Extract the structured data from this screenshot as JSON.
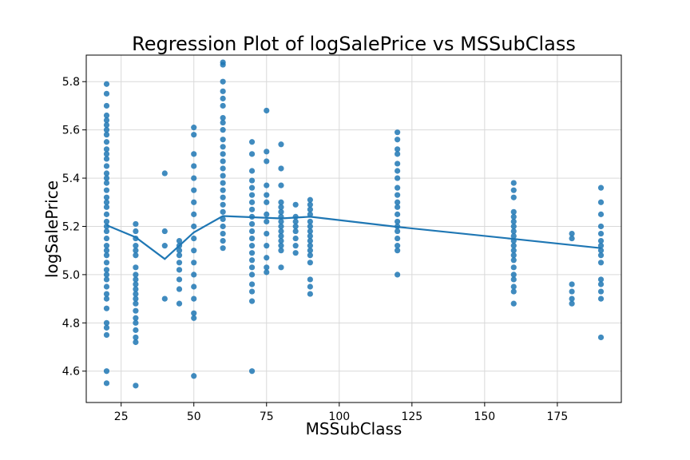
{
  "chart_data": {
    "type": "scatter",
    "title": "Regression Plot of logSalePrice vs MSSubClass",
    "xlabel": "MSSubClass",
    "ylabel": "logSalePrice",
    "xlim": [
      13,
      197
    ],
    "ylim": [
      4.47,
      5.91
    ],
    "xticks": [
      25,
      50,
      75,
      100,
      125,
      150,
      175
    ],
    "yticks": [
      4.6,
      4.8,
      5.0,
      5.2,
      5.4,
      5.6,
      5.8
    ],
    "grid": true,
    "point_color": "#1f77b4",
    "line_color": "#1f77b4",
    "groups": [
      {
        "x": 20,
        "values": [
          4.55,
          4.6,
          4.75,
          4.78,
          4.8,
          4.86,
          4.9,
          4.92,
          4.95,
          4.98,
          5.0,
          5.02,
          5.05,
          5.08,
          5.1,
          5.12,
          5.15,
          5.18,
          5.2,
          5.22,
          5.25,
          5.28,
          5.3,
          5.32,
          5.35,
          5.38,
          5.4,
          5.42,
          5.45,
          5.48,
          5.5,
          5.52,
          5.55,
          5.58,
          5.6,
          5.62,
          5.64,
          5.66,
          5.7,
          5.75,
          5.79
        ]
      },
      {
        "x": 30,
        "values": [
          4.54,
          4.72,
          4.74,
          4.77,
          4.8,
          4.82,
          4.85,
          4.88,
          4.9,
          4.92,
          4.94,
          4.96,
          4.98,
          5.0,
          5.03,
          5.08,
          5.1,
          5.12,
          5.15,
          5.18,
          5.21
        ]
      },
      {
        "x": 40,
        "values": [
          4.9,
          5.12,
          5.18,
          5.42
        ]
      },
      {
        "x": 45,
        "values": [
          4.88,
          4.94,
          4.98,
          5.02,
          5.05,
          5.08,
          5.1,
          5.12,
          5.14
        ]
      },
      {
        "x": 50,
        "values": [
          4.58,
          4.82,
          4.84,
          4.9,
          4.95,
          5.0,
          5.05,
          5.1,
          5.15,
          5.2,
          5.25,
          5.3,
          5.35,
          5.4,
          5.45,
          5.5,
          5.58,
          5.61
        ]
      },
      {
        "x": 60,
        "values": [
          5.11,
          5.14,
          5.17,
          5.2,
          5.23,
          5.26,
          5.29,
          5.32,
          5.35,
          5.38,
          5.41,
          5.44,
          5.47,
          5.5,
          5.53,
          5.56,
          5.6,
          5.63,
          5.65,
          5.7,
          5.73,
          5.76,
          5.8,
          5.87,
          5.88
        ]
      },
      {
        "x": 70,
        "values": [
          4.6,
          4.89,
          4.93,
          4.96,
          5.0,
          5.03,
          5.06,
          5.09,
          5.12,
          5.15,
          5.18,
          5.21,
          5.24,
          5.27,
          5.3,
          5.33,
          5.36,
          5.39,
          5.43,
          5.5,
          5.55
        ]
      },
      {
        "x": 75,
        "values": [
          5.01,
          5.03,
          5.07,
          5.12,
          5.17,
          5.22,
          5.25,
          5.3,
          5.33,
          5.37,
          5.47,
          5.51,
          5.68
        ]
      },
      {
        "x": 80,
        "values": [
          5.03,
          5.1,
          5.12,
          5.14,
          5.16,
          5.18,
          5.2,
          5.22,
          5.24,
          5.26,
          5.28,
          5.3,
          5.37,
          5.44,
          5.54
        ]
      },
      {
        "x": 85,
        "values": [
          5.09,
          5.12,
          5.15,
          5.18,
          5.2,
          5.22,
          5.24,
          5.29
        ]
      },
      {
        "x": 90,
        "values": [
          4.92,
          4.95,
          4.98,
          5.05,
          5.08,
          5.1,
          5.12,
          5.14,
          5.16,
          5.18,
          5.2,
          5.22,
          5.25,
          5.27,
          5.29,
          5.31
        ]
      },
      {
        "x": 120,
        "values": [
          5.0,
          5.1,
          5.12,
          5.15,
          5.18,
          5.2,
          5.22,
          5.25,
          5.28,
          5.3,
          5.33,
          5.36,
          5.4,
          5.43,
          5.46,
          5.5,
          5.52,
          5.56,
          5.59
        ]
      },
      {
        "x": 160,
        "values": [
          4.88,
          4.93,
          4.95,
          4.98,
          5.0,
          5.03,
          5.06,
          5.08,
          5.1,
          5.12,
          5.14,
          5.16,
          5.18,
          5.2,
          5.22,
          5.24,
          5.26,
          5.32,
          5.35,
          5.38
        ]
      },
      {
        "x": 180,
        "values": [
          4.88,
          4.9,
          4.93,
          4.96,
          5.15,
          5.17
        ]
      },
      {
        "x": 190,
        "values": [
          4.74,
          4.9,
          4.93,
          4.96,
          4.98,
          5.05,
          5.08,
          5.1,
          5.12,
          5.14,
          5.17,
          5.2,
          5.25,
          5.3,
          5.36
        ]
      }
    ],
    "fit_line": {
      "x": [
        20,
        30,
        40,
        50,
        60,
        70,
        80,
        90,
        120,
        160,
        190
      ],
      "y": [
        5.205,
        5.155,
        5.065,
        5.175,
        5.243,
        5.238,
        5.233,
        5.24,
        5.198,
        5.148,
        5.11
      ]
    }
  }
}
